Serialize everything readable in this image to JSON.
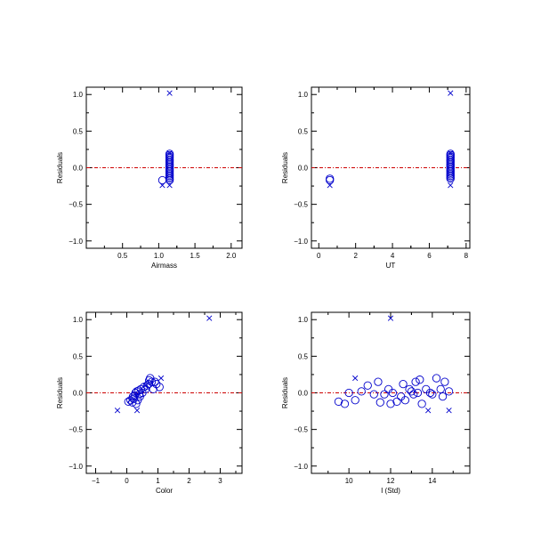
{
  "colors": {
    "marker": "#0000cc",
    "zero_line": "#cc0000",
    "axis": "#000000"
  },
  "chart_data": [
    {
      "type": "scatter",
      "xlabel": "Airmass",
      "ylabel": "Residuals",
      "xlim": [
        0,
        2.15
      ],
      "ylim": [
        -1.1,
        1.1
      ],
      "xticks": [
        0.5,
        1.0,
        1.5,
        2.0
      ],
      "xtick_labels": [
        "0.5",
        "1.0",
        "1.5",
        "2.0"
      ],
      "yticks": [
        -1.0,
        -0.5,
        0.0,
        0.5,
        1.0
      ],
      "ytick_labels": [
        "−1.0",
        "−0.5",
        "0.0",
        "0.5",
        "1.0"
      ],
      "zero_line": 0,
      "circles": [
        [
          1.05,
          -0.17
        ],
        [
          1.15,
          -0.17
        ],
        [
          1.15,
          -0.15
        ],
        [
          1.15,
          -0.13
        ],
        [
          1.15,
          -0.11
        ],
        [
          1.15,
          -0.09
        ],
        [
          1.15,
          -0.07
        ],
        [
          1.15,
          -0.05
        ],
        [
          1.15,
          -0.03
        ],
        [
          1.15,
          -0.01
        ],
        [
          1.15,
          0.01
        ],
        [
          1.15,
          0.03
        ],
        [
          1.15,
          0.05
        ],
        [
          1.15,
          0.07
        ],
        [
          1.15,
          0.09
        ],
        [
          1.15,
          0.11
        ],
        [
          1.15,
          0.13
        ],
        [
          1.15,
          0.15
        ],
        [
          1.15,
          0.17
        ],
        [
          1.15,
          0.19
        ]
      ],
      "crosses": [
        [
          1.15,
          1.02
        ],
        [
          1.05,
          -0.24
        ],
        [
          1.15,
          -0.24
        ],
        [
          1.15,
          0.2
        ]
      ]
    },
    {
      "type": "scatter",
      "xlabel": "UT",
      "ylabel": "Residuals",
      "xlim": [
        -0.4,
        8.2
      ],
      "ylim": [
        -1.1,
        1.1
      ],
      "xticks": [
        0,
        2,
        4,
        6,
        8
      ],
      "xtick_labels": [
        "0",
        "2",
        "4",
        "6",
        "8"
      ],
      "yticks": [
        -1.0,
        -0.5,
        0.0,
        0.5,
        1.0
      ],
      "ytick_labels": [
        "−1.0",
        "−0.5",
        "0.0",
        "0.5",
        "1.0"
      ],
      "zero_line": 0,
      "circles": [
        [
          0.6,
          -0.17
        ],
        [
          0.6,
          -0.15
        ],
        [
          7.15,
          -0.15
        ],
        [
          7.15,
          -0.13
        ],
        [
          7.15,
          -0.11
        ],
        [
          7.15,
          -0.09
        ],
        [
          7.15,
          -0.07
        ],
        [
          7.15,
          -0.05
        ],
        [
          7.15,
          -0.03
        ],
        [
          7.15,
          -0.01
        ],
        [
          7.15,
          0.01
        ],
        [
          7.15,
          0.03
        ],
        [
          7.15,
          0.05
        ],
        [
          7.15,
          0.07
        ],
        [
          7.15,
          0.09
        ],
        [
          7.15,
          0.11
        ],
        [
          7.15,
          0.13
        ],
        [
          7.15,
          0.15
        ],
        [
          7.15,
          0.17
        ],
        [
          7.15,
          0.19
        ]
      ],
      "crosses": [
        [
          7.15,
          1.02
        ],
        [
          0.6,
          -0.24
        ],
        [
          7.15,
          -0.24
        ],
        [
          7.15,
          0.2
        ]
      ]
    },
    {
      "type": "scatter",
      "xlabel": "Color",
      "ylabel": "Residuals",
      "xlim": [
        -1.3,
        3.7
      ],
      "ylim": [
        -1.1,
        1.1
      ],
      "xticks": [
        -1,
        0,
        1,
        2,
        3
      ],
      "xtick_labels": [
        "−1",
        "0",
        "1",
        "2",
        "3"
      ],
      "yticks": [
        -1.0,
        -0.5,
        0.0,
        0.5,
        1.0
      ],
      "ytick_labels": [
        "−1.0",
        "−0.5",
        "0.0",
        "0.5",
        "1.0"
      ],
      "zero_line": 0,
      "circles": [
        [
          0.05,
          -0.12
        ],
        [
          0.12,
          -0.1
        ],
        [
          0.18,
          -0.13
        ],
        [
          0.22,
          -0.08
        ],
        [
          0.25,
          -0.04
        ],
        [
          0.28,
          0.0
        ],
        [
          0.3,
          -0.15
        ],
        [
          0.32,
          0.02
        ],
        [
          0.35,
          -0.1
        ],
        [
          0.38,
          0.03
        ],
        [
          0.42,
          -0.05
        ],
        [
          0.45,
          0.05
        ],
        [
          0.5,
          0.0
        ],
        [
          0.55,
          0.08
        ],
        [
          0.6,
          0.05
        ],
        [
          0.65,
          0.1
        ],
        [
          0.7,
          0.12
        ],
        [
          0.72,
          0.17
        ],
        [
          0.75,
          0.2
        ],
        [
          0.8,
          0.15
        ],
        [
          0.85,
          0.05
        ],
        [
          0.9,
          0.15
        ],
        [
          0.95,
          0.12
        ],
        [
          1.05,
          0.08
        ],
        [
          0.2,
          -0.05
        ],
        [
          0.4,
          -0.02
        ]
      ],
      "crosses": [
        [
          2.65,
          1.02
        ],
        [
          -0.3,
          -0.24
        ],
        [
          0.33,
          -0.24
        ],
        [
          1.1,
          0.2
        ],
        [
          0.1,
          -0.1
        ],
        [
          0.6,
          0.1
        ]
      ]
    },
    {
      "type": "scatter",
      "xlabel": "I (Std)",
      "ylabel": "Residuals",
      "xlim": [
        8.2,
        15.8
      ],
      "ylim": [
        -1.1,
        1.1
      ],
      "xticks": [
        10,
        12,
        14
      ],
      "xtick_labels": [
        "10",
        "12",
        "14"
      ],
      "yticks": [
        -1.0,
        -0.5,
        0.0,
        0.5,
        1.0
      ],
      "ytick_labels": [
        "−1.0",
        "−0.5",
        "0.0",
        "0.5",
        "1.0"
      ],
      "zero_line": 0,
      "circles": [
        [
          9.5,
          -0.12
        ],
        [
          9.8,
          -0.15
        ],
        [
          10.0,
          0.0
        ],
        [
          10.3,
          -0.1
        ],
        [
          10.6,
          0.02
        ],
        [
          10.9,
          0.1
        ],
        [
          11.2,
          -0.02
        ],
        [
          11.4,
          0.15
        ],
        [
          11.5,
          -0.13
        ],
        [
          11.7,
          -0.02
        ],
        [
          11.9,
          0.05
        ],
        [
          12.0,
          -0.15
        ],
        [
          12.1,
          0.0
        ],
        [
          12.3,
          -0.12
        ],
        [
          12.5,
          -0.05
        ],
        [
          12.6,
          0.12
        ],
        [
          12.7,
          -0.1
        ],
        [
          12.9,
          0.05
        ],
        [
          13.1,
          -0.02
        ],
        [
          13.2,
          0.15
        ],
        [
          13.3,
          0.0
        ],
        [
          13.4,
          0.18
        ],
        [
          13.5,
          -0.15
        ],
        [
          13.7,
          0.05
        ],
        [
          13.9,
          0.0
        ],
        [
          14.0,
          -0.02
        ],
        [
          14.2,
          0.2
        ],
        [
          14.4,
          0.05
        ],
        [
          14.6,
          0.15
        ],
        [
          14.8,
          0.02
        ],
        [
          14.5,
          -0.05
        ],
        [
          13.0,
          0.02
        ]
      ],
      "crosses": [
        [
          12.0,
          1.02
        ],
        [
          10.3,
          0.2
        ],
        [
          13.8,
          -0.24
        ],
        [
          14.8,
          -0.24
        ]
      ]
    }
  ]
}
